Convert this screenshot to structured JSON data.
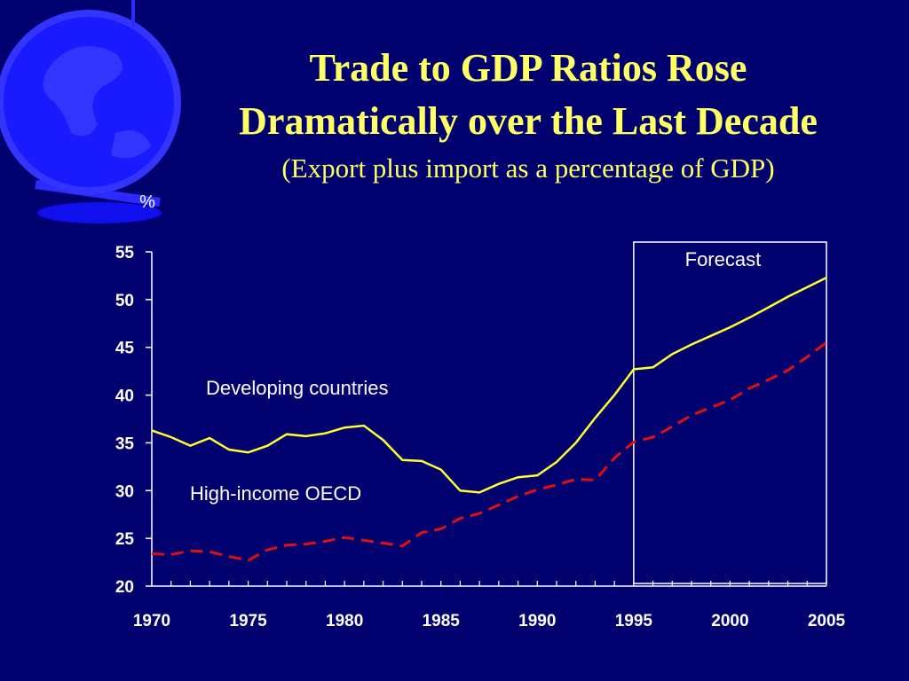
{
  "slide": {
    "title_line_1": "Trade to GDP Ratios Rose",
    "title_line_2": "Dramatically over the Last Decade",
    "subtitle": "(Export plus import as a percentage of GDP)"
  },
  "colors": {
    "background": "#00006e",
    "title": "#ffff66",
    "developing": "#ffff33",
    "oecd": "#e01010",
    "axis": "#ffffff",
    "globe": "#1a1aff"
  },
  "chart_data": {
    "type": "line",
    "ylabel": "%",
    "ylim": [
      20,
      55
    ],
    "yticks": [
      "20",
      "25",
      "30",
      "35",
      "40",
      "45",
      "50",
      "55"
    ],
    "xlim": [
      1970,
      2005
    ],
    "xticks": [
      "1970",
      "1975",
      "1980",
      "1985",
      "1990",
      "1995",
      "2000",
      "2005"
    ],
    "grid": false,
    "forecast_region": {
      "label": "Forecast",
      "start": 1995,
      "end": 2005
    },
    "x": [
      1970,
      1971,
      1972,
      1973,
      1974,
      1975,
      1976,
      1977,
      1978,
      1979,
      1980,
      1981,
      1982,
      1983,
      1984,
      1985,
      1986,
      1987,
      1988,
      1989,
      1990,
      1991,
      1992,
      1993,
      1994,
      1995,
      1996,
      1997,
      1998,
      1999,
      2000,
      2001,
      2002,
      2003,
      2004,
      2005
    ],
    "series": [
      {
        "name": "Developing countries",
        "style": "solid",
        "color": "#ffff33",
        "values": [
          36.3,
          35.6,
          34.7,
          35.5,
          34.3,
          34.0,
          34.7,
          35.9,
          35.7,
          36.0,
          36.6,
          36.8,
          35.3,
          33.2,
          33.1,
          32.2,
          30.0,
          29.8,
          30.7,
          31.4,
          31.6,
          33.0,
          35.0,
          37.6,
          40.0,
          42.7,
          42.9,
          44.3,
          45.3,
          46.2,
          47.1,
          48.1,
          49.2,
          50.3,
          51.3,
          52.3
        ]
      },
      {
        "name": "High-income OECD",
        "style": "dashed",
        "color": "#e01010",
        "values": [
          23.4,
          23.3,
          23.7,
          23.6,
          23.1,
          22.7,
          23.8,
          24.3,
          24.4,
          24.7,
          25.1,
          24.8,
          24.5,
          24.2,
          25.6,
          26.0,
          27.1,
          27.6,
          28.5,
          29.4,
          30.1,
          30.6,
          31.2,
          31.1,
          33.4,
          35.1,
          35.6,
          36.7,
          37.9,
          38.7,
          39.5,
          40.7,
          41.6,
          42.6,
          44.0,
          45.5
        ]
      }
    ]
  }
}
